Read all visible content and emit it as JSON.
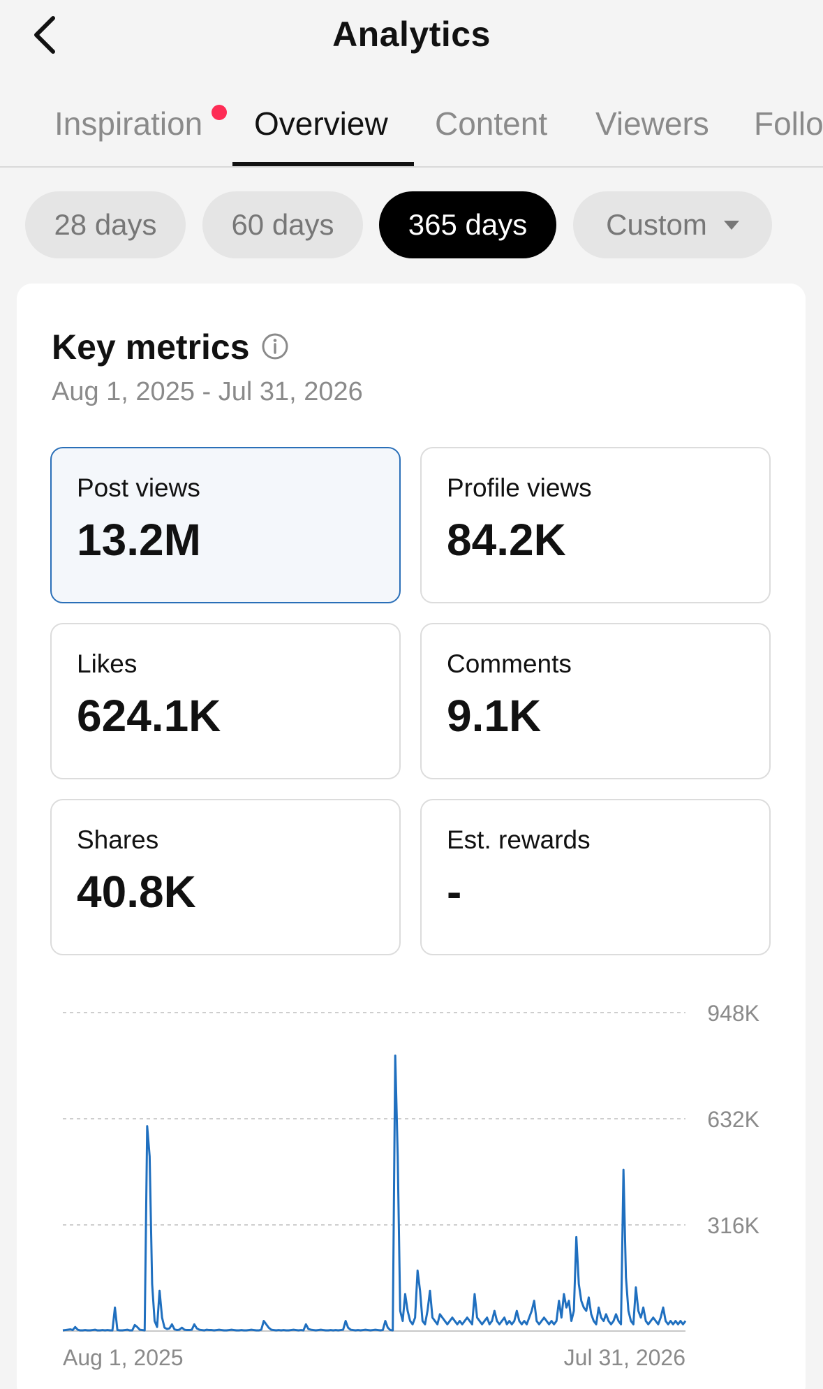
{
  "header": {
    "title": "Analytics",
    "back_icon": "chevron-left-icon"
  },
  "tabs": [
    {
      "label": "Inspiration",
      "active": false,
      "has_notification_dot": true
    },
    {
      "label": "Overview",
      "active": true
    },
    {
      "label": "Content",
      "active": false
    },
    {
      "label": "Viewers",
      "active": false
    },
    {
      "label": "Follo",
      "active": false
    }
  ],
  "periods": {
    "options": [
      "28 days",
      "60 days",
      "365 days",
      "Custom"
    ],
    "selected": "365 days"
  },
  "key_metrics": {
    "title": "Key metrics",
    "info_icon": "info-icon",
    "date_range": "Aug 1, 2025 - Jul 31, 2026",
    "cards": [
      {
        "label": "Post views",
        "value": "13.2M",
        "selected": true
      },
      {
        "label": "Profile views",
        "value": "84.2K"
      },
      {
        "label": "Likes",
        "value": "624.1K"
      },
      {
        "label": "Comments",
        "value": "9.1K"
      },
      {
        "label": "Shares",
        "value": "40.8K"
      },
      {
        "label": "Est. rewards",
        "value": "-"
      }
    ]
  },
  "colors": {
    "accent_line": "#1f6fbf",
    "selected_chip": "#000000",
    "notification_dot": "#fe2c55"
  },
  "chart_data": {
    "type": "line",
    "x_labels": [
      "Aug 1, 2025",
      "Jul 31, 2026"
    ],
    "y_ticks": [
      "316K",
      "632K",
      "948K"
    ],
    "ylim": [
      0,
      948000
    ],
    "grid": true,
    "series": [
      {
        "values": [
          2000,
          3000,
          4000,
          5000,
          3000,
          12000,
          4000,
          2000,
          2000,
          3000,
          2000,
          2000,
          3000,
          4000,
          2000,
          2000,
          3000,
          2000,
          3000,
          2000,
          2000,
          70000,
          3000,
          2000,
          2000,
          3000,
          4000,
          2000,
          2000,
          18000,
          12000,
          4000,
          3000,
          2000,
          610000,
          520000,
          140000,
          30000,
          12000,
          120000,
          40000,
          10000,
          6000,
          8000,
          20000,
          5000,
          3000,
          4000,
          10000,
          4000,
          3000,
          3000,
          4000,
          20000,
          8000,
          4000,
          3000,
          2000,
          4000,
          3000,
          3000,
          2000,
          3000,
          4000,
          3000,
          2000,
          2000,
          3000,
          4000,
          3000,
          2000,
          2000,
          3000,
          2000,
          2000,
          3000,
          4000,
          3000,
          2000,
          2000,
          4000,
          30000,
          20000,
          10000,
          4000,
          3000,
          2000,
          3000,
          2000,
          3000,
          2000,
          2000,
          3000,
          4000,
          3000,
          2000,
          3000,
          2000,
          20000,
          6000,
          4000,
          3000,
          2000,
          3000,
          4000,
          3000,
          2000,
          2000,
          3000,
          2000,
          3000,
          2000,
          3000,
          4000,
          30000,
          10000,
          4000,
          3000,
          2000,
          3000,
          2000,
          3000,
          4000,
          3000,
          2000,
          3000,
          4000,
          3000,
          2000,
          3000,
          30000,
          10000,
          3000,
          2000,
          820000,
          520000,
          60000,
          30000,
          110000,
          60000,
          30000,
          20000,
          40000,
          180000,
          120000,
          30000,
          20000,
          60000,
          120000,
          40000,
          30000,
          20000,
          50000,
          40000,
          30000,
          20000,
          30000,
          40000,
          30000,
          20000,
          30000,
          20000,
          30000,
          40000,
          30000,
          20000,
          110000,
          40000,
          30000,
          20000,
          30000,
          40000,
          20000,
          30000,
          60000,
          30000,
          20000,
          30000,
          40000,
          20000,
          30000,
          20000,
          30000,
          60000,
          30000,
          20000,
          30000,
          20000,
          40000,
          60000,
          90000,
          30000,
          20000,
          30000,
          40000,
          30000,
          20000,
          30000,
          20000,
          30000,
          90000,
          40000,
          110000,
          70000,
          90000,
          30000,
          60000,
          280000,
          140000,
          90000,
          70000,
          60000,
          100000,
          50000,
          30000,
          20000,
          70000,
          40000,
          30000,
          50000,
          30000,
          20000,
          30000,
          50000,
          30000,
          20000,
          480000,
          160000,
          60000,
          30000,
          20000,
          130000,
          60000,
          40000,
          70000,
          30000,
          20000,
          30000,
          40000,
          30000,
          20000,
          40000,
          70000,
          30000,
          20000,
          30000,
          20000,
          30000,
          20000,
          30000,
          20000,
          30000
        ]
      }
    ]
  }
}
